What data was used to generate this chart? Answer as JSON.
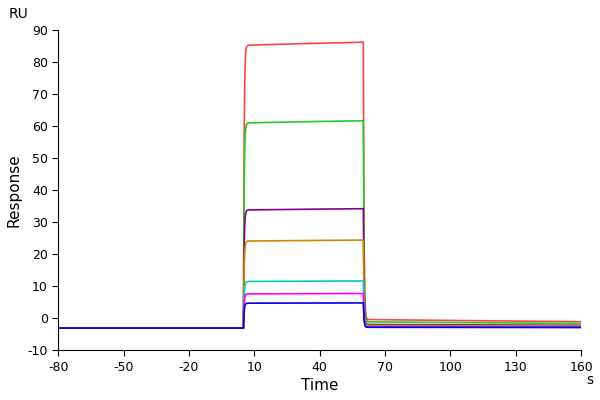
{
  "title": "",
  "xlabel": "Time",
  "ylabel": "Response",
  "xlabel_unit": "s",
  "ylabel_unit": "RU",
  "xlim": [
    -80,
    160
  ],
  "ylim": [
    -10,
    90
  ],
  "xticks": [
    -80,
    -50,
    -20,
    10,
    40,
    70,
    100,
    130,
    160
  ],
  "xtick_labels": [
    "-80",
    "-50",
    "-20",
    "10",
    "40",
    "70",
    "100",
    "130",
    "160"
  ],
  "yticks": [
    -10,
    0,
    10,
    20,
    30,
    40,
    50,
    60,
    70,
    80,
    90
  ],
  "ytick_labels": [
    "-10",
    "0",
    "10",
    "20",
    "30",
    "40",
    "50",
    "60",
    "70",
    "80",
    "90"
  ],
  "baseline_x_start": -80,
  "assoc_x_start": 5,
  "assoc_x_end": 60,
  "dissoc_x_end": 160,
  "baseline_y": -3,
  "series": [
    {
      "color": "#FF4444",
      "plateau": 88,
      "dissoc_residual": -3
    },
    {
      "color": "#22CC22",
      "plateau": 63,
      "dissoc_residual": -3
    },
    {
      "color": "#880088",
      "plateau": 35,
      "dissoc_residual": -3
    },
    {
      "color": "#CC8800",
      "plateau": 25,
      "dissoc_residual": -3
    },
    {
      "color": "#00CCCC",
      "plateau": 12,
      "dissoc_residual": -3
    },
    {
      "color": "#FF00FF",
      "plateau": 8,
      "dissoc_residual": -3
    },
    {
      "color": "#0000EE",
      "plateau": 5,
      "dissoc_residual": -3
    }
  ],
  "background_color": "#FFFFFF"
}
